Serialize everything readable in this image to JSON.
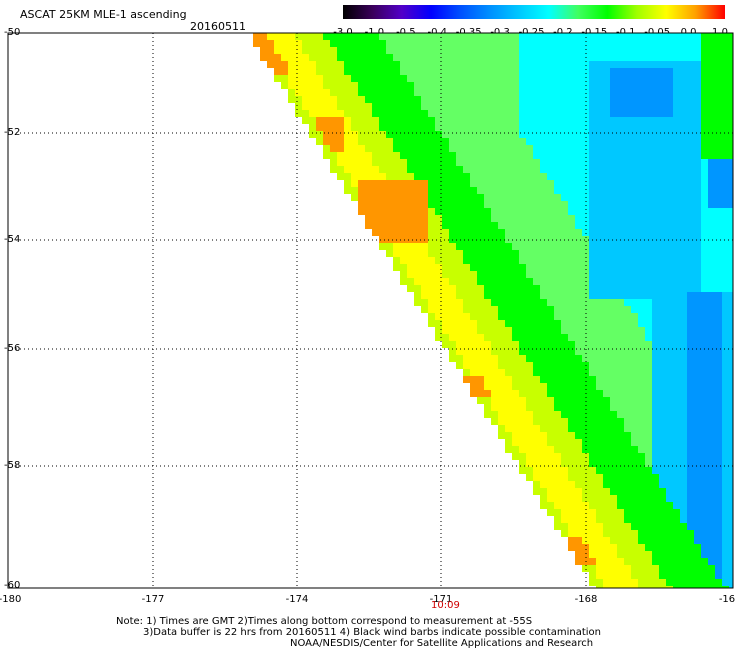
{
  "header": {
    "title": "ASCAT 25KM MLE-1 ascending",
    "date": "20160511"
  },
  "colorbar": {
    "labels": [
      "-3.0",
      "-1.0",
      "-0.5",
      "-0.4",
      "-0.35",
      "-0.3",
      "-0.25",
      "-0.2",
      "-0.15",
      "-0.1",
      "-0.05",
      "0.0",
      "1.0"
    ],
    "colors": [
      "#000000",
      "#3a005a",
      "#5200c8",
      "#0000ff",
      "#0050ff",
      "#0090ff",
      "#00c8ff",
      "#00ffff",
      "#40ff60",
      "#00ff00",
      "#a0ff00",
      "#ffff00",
      "#ffa000",
      "#ff0000"
    ]
  },
  "axes": {
    "y_ticks": [
      "-50",
      "-52",
      "-54",
      "-56",
      "-58",
      "-60"
    ],
    "x_ticks": [
      "-180",
      "-177",
      "-174",
      "-171",
      "-168",
      "-16"
    ]
  },
  "time_label": "10:09",
  "notes": {
    "line1": "Note: 1) Times are GMT 2)Times along bottom correspond to measurement at -55S",
    "line2": "3)Data buffer is 22 hrs from 20160511 4) Black wind barbs indicate possible contamination",
    "line3": "NOAA/NESDIS/Center for Satellite Applications and Research"
  },
  "map_colors": {
    "orange": "#ff9600",
    "yellow": "#ffff00",
    "yellowgreen": "#c8ff00",
    "green": "#00ff00",
    "lightgreen": "#64ff64",
    "cyan": "#00ffff",
    "lightblue": "#00c8ff",
    "blue": "#0096ff",
    "deepblue": "#005aff"
  }
}
